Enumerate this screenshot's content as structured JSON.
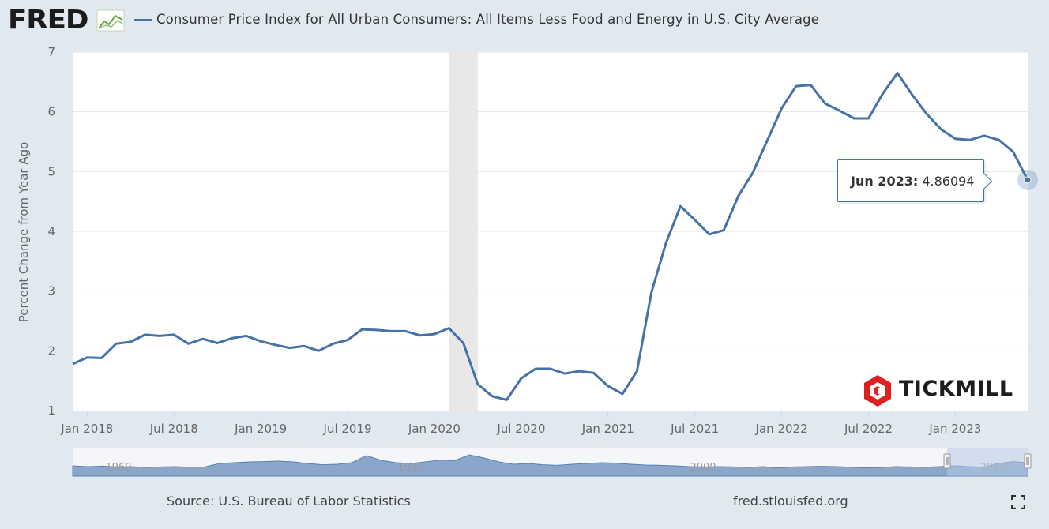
{
  "header": {
    "logo_text": "FRED",
    "logo_mark": "trend-chart-icon",
    "title": "Consumer Price Index for All Urban Consumers: All Items Less Food and Energy in U.S. City Average"
  },
  "chart_data": {
    "type": "line",
    "title": "Consumer Price Index for All Urban Consumers: All Items Less Food and Energy in U.S. City Average",
    "ylabel": "Percent Change from Year Ago",
    "xlabel": "",
    "ylim": [
      1,
      7
    ],
    "yticks": [
      1,
      2,
      3,
      4,
      5,
      6,
      7
    ],
    "xlim": [
      "2017-12",
      "2023-06"
    ],
    "xticks": [
      {
        "label": "Jan 2018",
        "date": "2018-01"
      },
      {
        "label": "Jul 2018",
        "date": "2018-07"
      },
      {
        "label": "Jan 2019",
        "date": "2019-01"
      },
      {
        "label": "Jul 2019",
        "date": "2019-07"
      },
      {
        "label": "Jan 2020",
        "date": "2020-01"
      },
      {
        "label": "Jul 2020",
        "date": "2020-07"
      },
      {
        "label": "Jan 2021",
        "date": "2021-01"
      },
      {
        "label": "Jul 2021",
        "date": "2021-07"
      },
      {
        "label": "Jan 2022",
        "date": "2022-01"
      },
      {
        "label": "Jul 2022",
        "date": "2022-07"
      },
      {
        "label": "Jan 2023",
        "date": "2023-01"
      }
    ],
    "grid": true,
    "recession_shading": [
      "2020-02",
      "2020-04"
    ],
    "line_color": "#4572a7",
    "series": [
      {
        "x": [
          "2017-12",
          "2018-01",
          "2018-02",
          "2018-03",
          "2018-04",
          "2018-05",
          "2018-06",
          "2018-07",
          "2018-08",
          "2018-09",
          "2018-10",
          "2018-11",
          "2018-12",
          "2019-01",
          "2019-02",
          "2019-03",
          "2019-04",
          "2019-05",
          "2019-06",
          "2019-07",
          "2019-08",
          "2019-09",
          "2019-10",
          "2019-11",
          "2019-12",
          "2020-01",
          "2020-02",
          "2020-03",
          "2020-04",
          "2020-05",
          "2020-06",
          "2020-07",
          "2020-08",
          "2020-09",
          "2020-10",
          "2020-11",
          "2020-12",
          "2021-01",
          "2021-02",
          "2021-03",
          "2021-04",
          "2021-05",
          "2021-06",
          "2021-07",
          "2021-08",
          "2021-09",
          "2021-10",
          "2021-11",
          "2021-12",
          "2022-01",
          "2022-02",
          "2022-03",
          "2022-04",
          "2022-05",
          "2022-06",
          "2022-07",
          "2022-08",
          "2022-09",
          "2022-10",
          "2022-11",
          "2022-12",
          "2023-01",
          "2023-02",
          "2023-03",
          "2023-04",
          "2023-05",
          "2023-06"
        ],
        "values": [
          1.78,
          1.89,
          1.88,
          2.12,
          2.15,
          2.27,
          2.25,
          2.27,
          2.12,
          2.2,
          2.13,
          2.21,
          2.25,
          2.16,
          2.1,
          2.05,
          2.08,
          2.0,
          2.12,
          2.18,
          2.36,
          2.35,
          2.33,
          2.33,
          2.26,
          2.28,
          2.38,
          2.13,
          1.44,
          1.24,
          1.18,
          1.54,
          1.7,
          1.7,
          1.62,
          1.66,
          1.63,
          1.41,
          1.28,
          1.66,
          2.98,
          3.8,
          4.42,
          4.19,
          3.95,
          4.02,
          4.59,
          4.98,
          5.52,
          6.06,
          6.43,
          6.45,
          6.14,
          6.02,
          5.89,
          5.89,
          6.31,
          6.65,
          6.29,
          5.97,
          5.71,
          5.55,
          5.53,
          5.6,
          5.53,
          5.33,
          4.86094
        ]
      }
    ],
    "tooltip": {
      "date_label": "Jun 2023:",
      "value": "4.86094"
    }
  },
  "navigator": {
    "labels": [
      "1960",
      "1980",
      "2000",
      "2020"
    ],
    "fill_color": "#8aa7cb",
    "window_color": "#b8c8e4"
  },
  "footer": {
    "source": "Source: U.S. Bureau of Labor Statistics",
    "url": "fred.stlouisfed.org"
  },
  "watermark": {
    "text": "TICKMILL",
    "icon": "tickmill-hexagon-icon",
    "color": "#e02020"
  }
}
